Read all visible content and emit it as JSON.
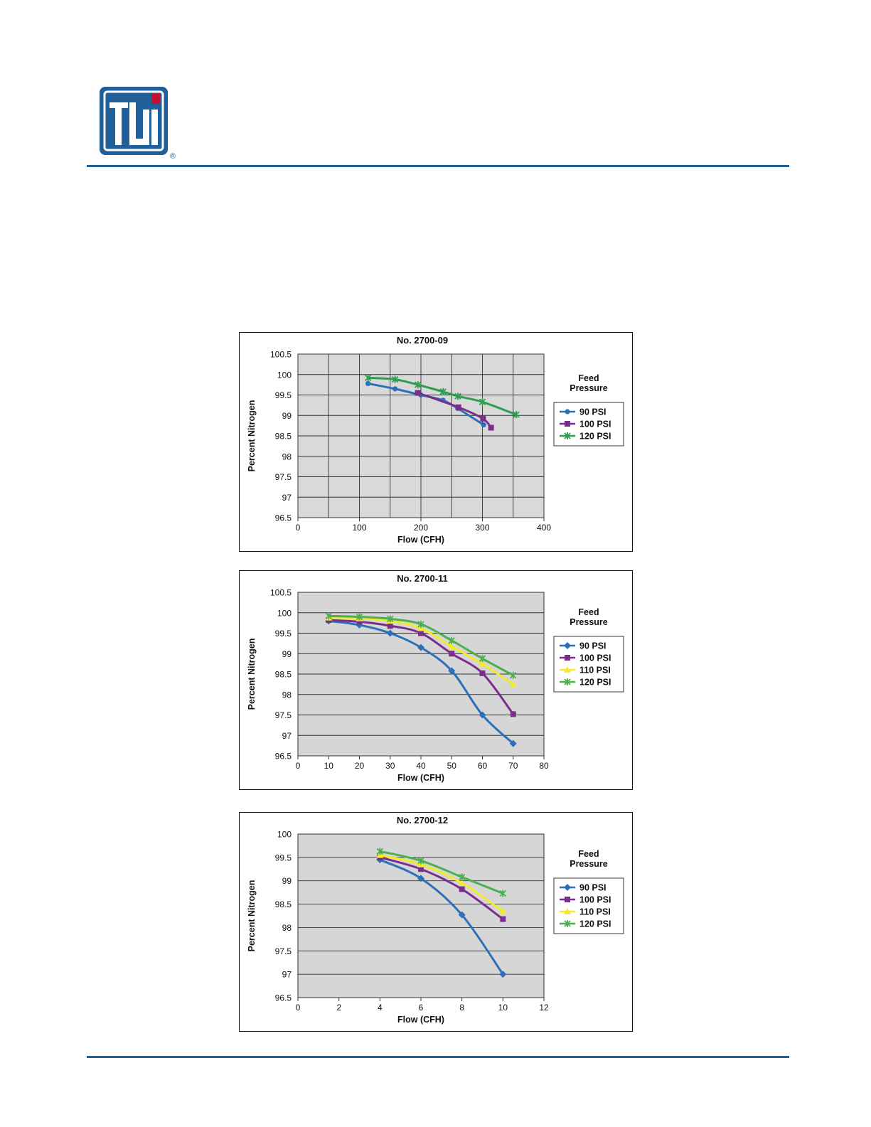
{
  "logo": {
    "mark": "TI",
    "registered": "®",
    "accent_color": "#c8102e",
    "brand_color": "#1f5f9a"
  },
  "chart_data": [
    {
      "type": "line",
      "title": "No. 2700-09",
      "xlabel": "Flow (CFH)",
      "ylabel": "Percent Nitrogen",
      "xlim": [
        0,
        400
      ],
      "ylim": [
        96.5,
        100.5
      ],
      "xticks": [
        0,
        100,
        200,
        300,
        400
      ],
      "xtick_labels": [
        "0",
        "100",
        "200",
        "300",
        "400"
      ],
      "yticks": [
        96.5,
        97,
        97.5,
        98,
        98.5,
        99,
        99.5,
        100,
        100.5
      ],
      "ytick_labels": [
        "96.5",
        "97",
        "97.5",
        "98",
        "98.5",
        "99",
        "99.5",
        "100",
        "100.5"
      ],
      "vgrid": [
        0,
        50,
        100,
        150,
        200,
        250,
        300,
        350,
        400
      ],
      "grid": true,
      "plot_background": "#d9d9d9",
      "legend_title": [
        "Feed",
        "Pressure"
      ],
      "legend_placement": "right",
      "series": [
        {
          "name": "90 PSI",
          "color": "#2b70b8",
          "marker": "circle",
          "x": [
            114,
            158,
            200,
            236,
            260,
            302
          ],
          "y": [
            99.78,
            99.65,
            99.5,
            99.37,
            99.17,
            98.77
          ]
        },
        {
          "name": "100 PSI",
          "color": "#7b2d8e",
          "marker": "square",
          "x": [
            195,
            261,
            301,
            314
          ],
          "y": [
            99.55,
            99.2,
            98.92,
            98.7
          ]
        },
        {
          "name": "120 PSI",
          "color": "#2e9e4f",
          "marker": "x",
          "x": [
            114,
            158,
            195,
            236,
            260,
            300,
            355
          ],
          "y": [
            99.92,
            99.88,
            99.75,
            99.58,
            99.47,
            99.33,
            99.02
          ]
        }
      ]
    },
    {
      "type": "line",
      "title": "No. 2700-11",
      "xlabel": "Flow (CFH)",
      "ylabel": "Percent Nitrogen",
      "xlim": [
        0,
        80
      ],
      "ylim": [
        96.5,
        100.5
      ],
      "xticks": [
        0,
        10,
        20,
        30,
        40,
        50,
        60,
        70,
        80
      ],
      "xtick_labels": [
        "0",
        "10",
        "20",
        "30",
        "40",
        "50",
        "60",
        "70",
        "80"
      ],
      "yticks": [
        96.5,
        97,
        97.5,
        98,
        98.5,
        99,
        99.5,
        100,
        100.5
      ],
      "ytick_labels": [
        "96.5",
        "97",
        "97.5",
        "98",
        "98.5",
        "99",
        "99.5",
        "100",
        "100.5"
      ],
      "grid": true,
      "plot_background": "#d6d6d6",
      "legend_title": [
        "Feed",
        "Pressure"
      ],
      "legend_placement": "right",
      "series": [
        {
          "name": "90 PSI",
          "color": "#2b70b8",
          "marker": "diamond",
          "x": [
            10,
            20,
            30,
            40,
            50,
            60,
            70
          ],
          "y": [
            99.8,
            99.7,
            99.5,
            99.15,
            98.58,
            97.5,
            96.8
          ]
        },
        {
          "name": "100 PSI",
          "color": "#7b2d8e",
          "marker": "square",
          "x": [
            10,
            20,
            30,
            40,
            50,
            60,
            70
          ],
          "y": [
            99.82,
            99.78,
            99.68,
            99.5,
            99.0,
            98.52,
            97.52
          ]
        },
        {
          "name": "110 PSI",
          "color": "#f2ea2a",
          "marker": "triangle",
          "x": [
            10,
            20,
            30,
            40,
            50,
            60,
            70
          ],
          "y": [
            99.88,
            99.86,
            99.8,
            99.62,
            99.18,
            98.75,
            98.25
          ]
        },
        {
          "name": "120 PSI",
          "color": "#4caf50",
          "marker": "x",
          "x": [
            10,
            20,
            30,
            40,
            50,
            60,
            70
          ],
          "y": [
            99.92,
            99.9,
            99.85,
            99.72,
            99.32,
            98.88,
            98.47
          ]
        }
      ]
    },
    {
      "type": "line",
      "title": "No. 2700-12",
      "xlabel": "Flow (CFH)",
      "ylabel": "Percent Nitrogen",
      "xlim": [
        0,
        12
      ],
      "ylim": [
        96.5,
        100
      ],
      "xticks": [
        0,
        2,
        4,
        6,
        8,
        10,
        12
      ],
      "xtick_labels": [
        "0",
        "2",
        "4",
        "6",
        "8",
        "10",
        "12"
      ],
      "yticks": [
        96.5,
        97,
        97.5,
        98,
        98.5,
        99,
        99.5,
        100
      ],
      "ytick_labels": [
        "96.5",
        "97",
        "97.5",
        "98",
        "98.5",
        "99",
        "99.5",
        "100"
      ],
      "grid": true,
      "plot_background": "#d6d6d6",
      "legend_title": [
        "Feed",
        "Pressure"
      ],
      "legend_placement": "right",
      "series": [
        {
          "name": "90 PSI",
          "color": "#2b70b8",
          "marker": "diamond",
          "x": [
            4,
            6,
            8,
            10
          ],
          "y": [
            99.45,
            99.05,
            98.27,
            97.0
          ]
        },
        {
          "name": "100 PSI",
          "color": "#7b2d8e",
          "marker": "square",
          "x": [
            4,
            6,
            8,
            10
          ],
          "y": [
            99.5,
            99.25,
            98.82,
            98.18
          ]
        },
        {
          "name": "110 PSI",
          "color": "#f2ea2a",
          "marker": "triangle",
          "x": [
            4,
            6,
            8,
            10
          ],
          "y": [
            99.55,
            99.35,
            98.95,
            98.35
          ]
        },
        {
          "name": "120 PSI",
          "color": "#4caf50",
          "marker": "x",
          "x": [
            4,
            6,
            8,
            10
          ],
          "y": [
            99.63,
            99.43,
            99.08,
            98.73
          ]
        }
      ]
    }
  ]
}
